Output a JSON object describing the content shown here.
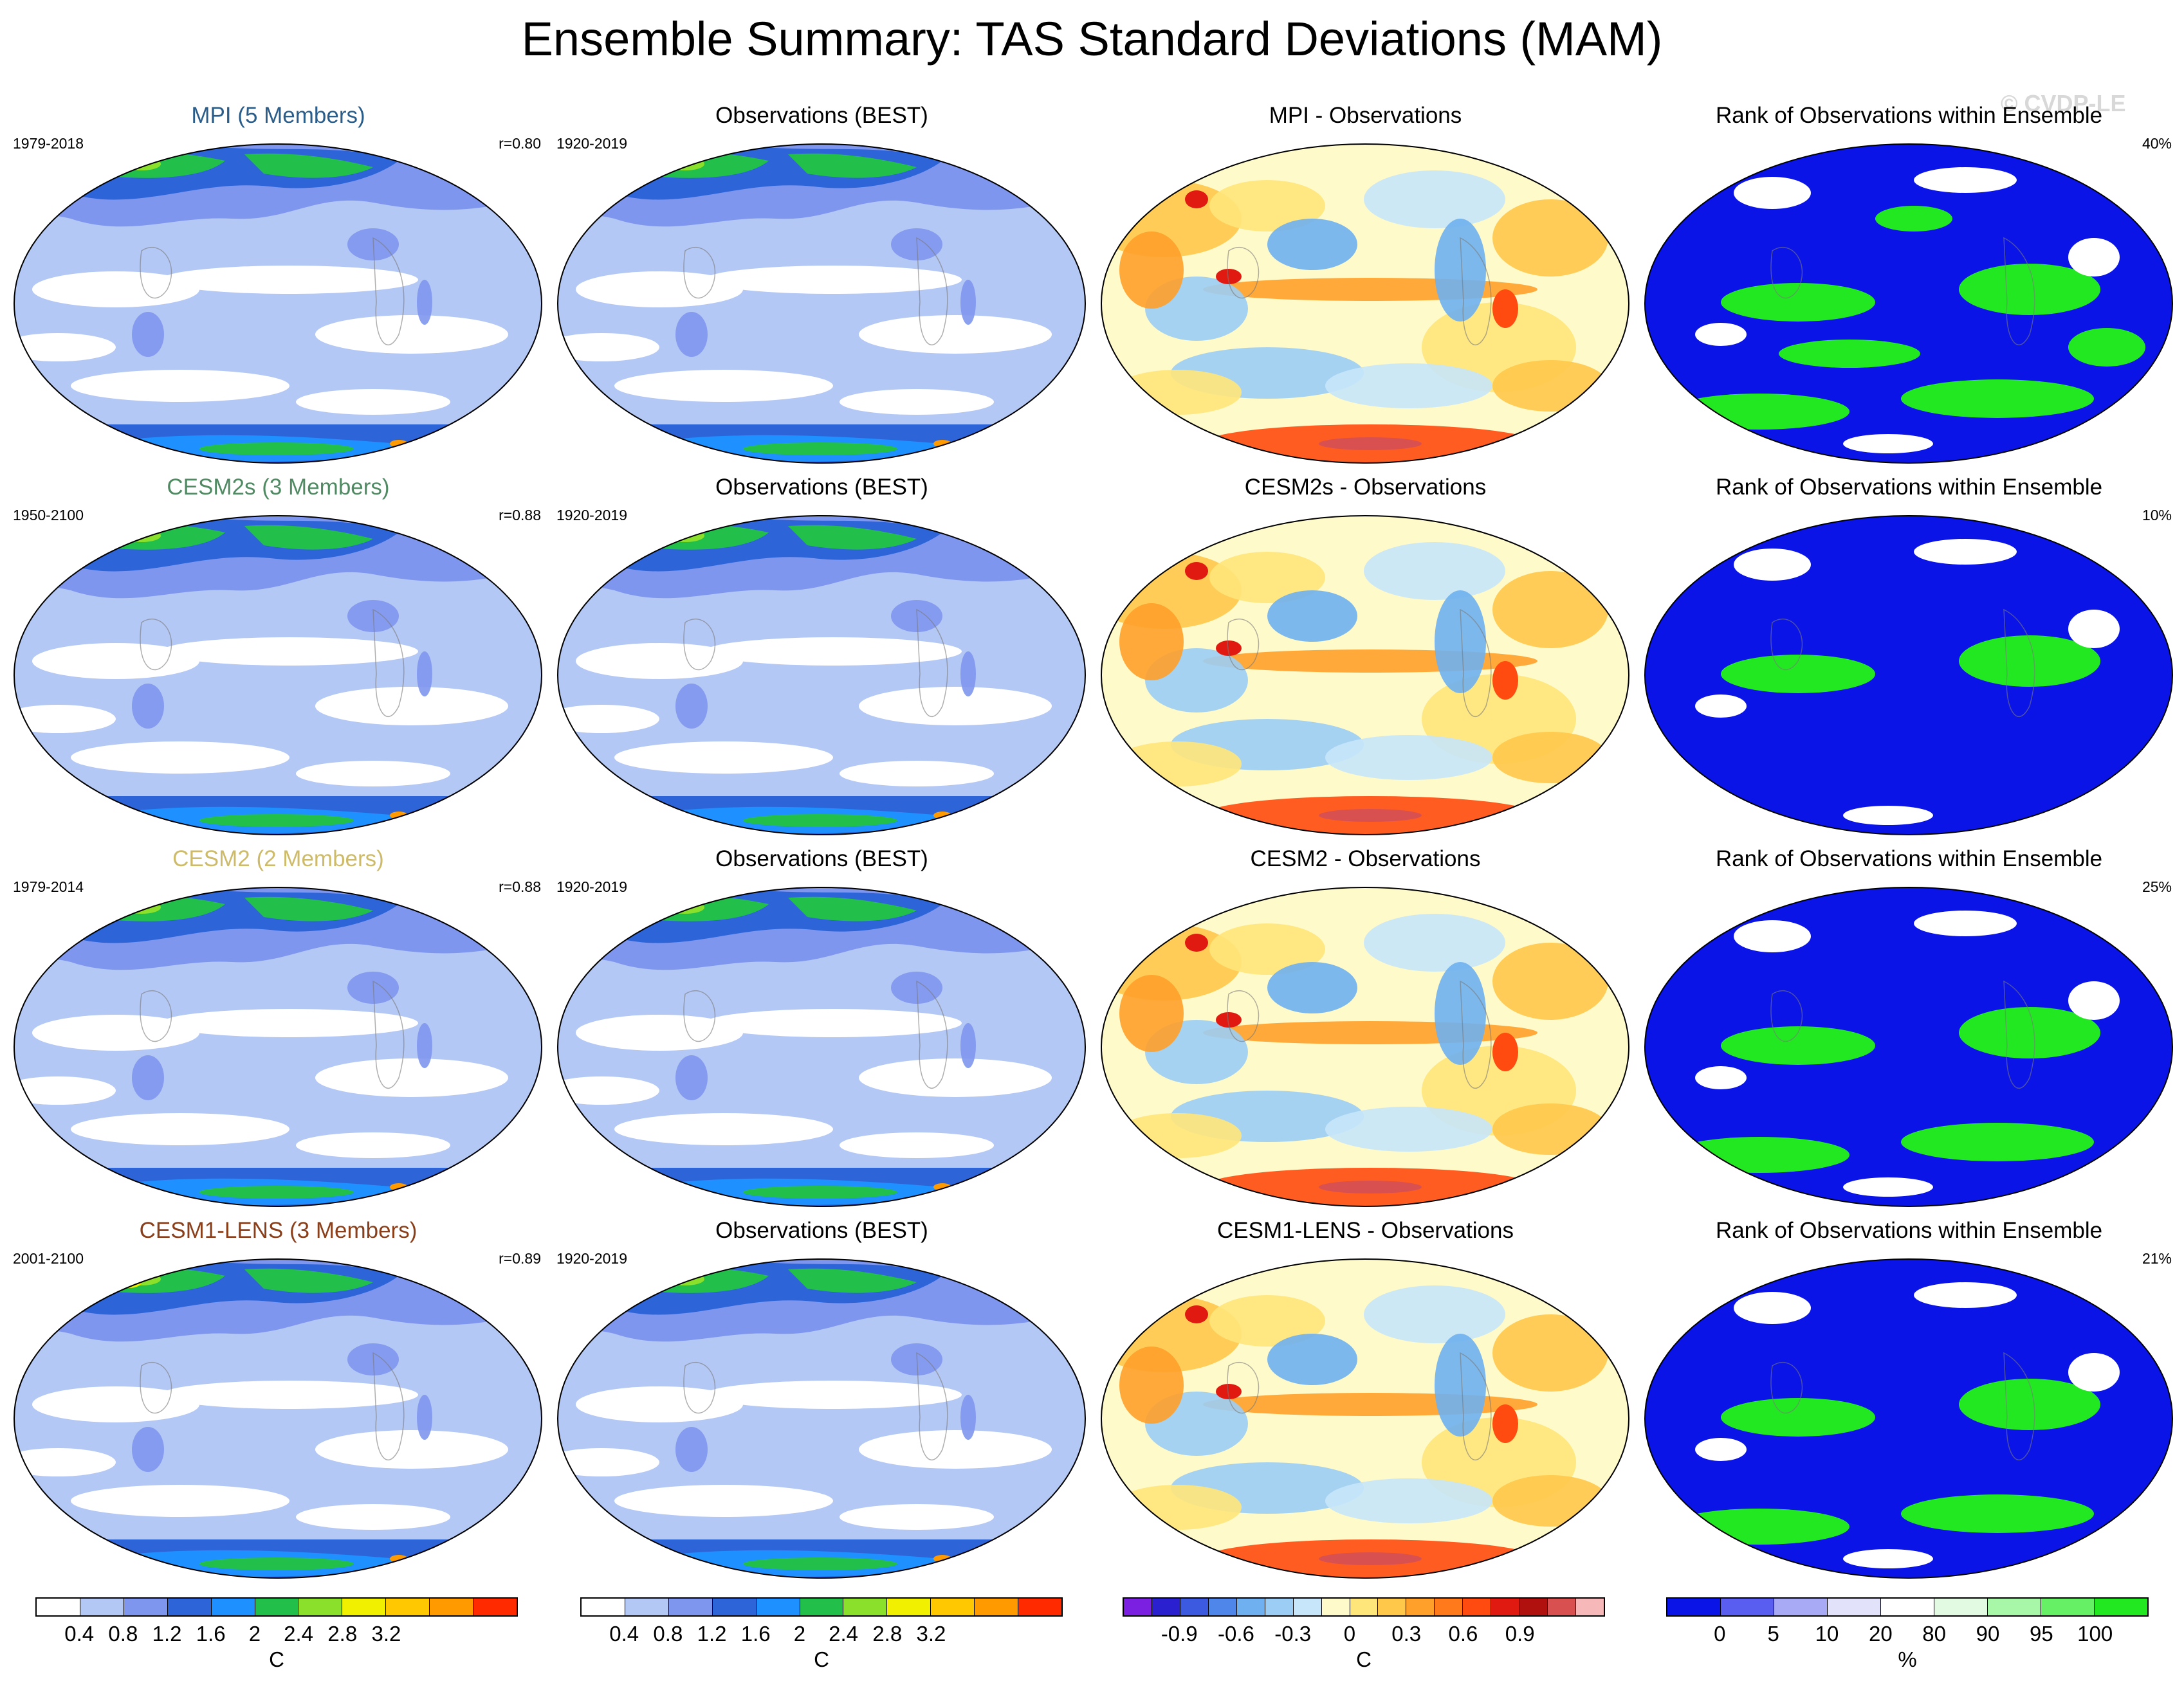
{
  "title": "Ensemble Summary: TAS Standard Deviations (MAM)",
  "copyright": "© CVDP-LE",
  "rows": [
    {
      "model": {
        "title": "MPI (5 Members)",
        "title_color": "#2a5d8a",
        "years": "1979-2018",
        "corr": "r=0.80"
      },
      "obs": {
        "title": "Observations (BEST)",
        "years": "1920-2019"
      },
      "diff": {
        "title": "MPI - Observations"
      },
      "rank": {
        "title": "Rank of Observations within Ensemble",
        "pct": "40%",
        "green_fraction": 0.4
      }
    },
    {
      "model": {
        "title": "CESM2s (3 Members)",
        "title_color": "#4f8a62",
        "years": "1950-2100",
        "corr": "r=0.88"
      },
      "obs": {
        "title": "Observations (BEST)",
        "years": "1920-2019"
      },
      "diff": {
        "title": "CESM2s - Observations"
      },
      "rank": {
        "title": "Rank of Observations within Ensemble",
        "pct": "10%",
        "green_fraction": 0.1
      }
    },
    {
      "model": {
        "title": "CESM2 (2 Members)",
        "title_color": "#cdbb6a",
        "years": "1979-2014",
        "corr": "r=0.88"
      },
      "obs": {
        "title": "Observations (BEST)",
        "years": "1920-2019"
      },
      "diff": {
        "title": "CESM2 - Observations"
      },
      "rank": {
        "title": "Rank of Observations within Ensemble",
        "pct": "25%",
        "green_fraction": 0.25
      }
    },
    {
      "model": {
        "title": "CESM1-LENS (3 Members)",
        "title_color": "#8a3f1a",
        "years": "2001-2100",
        "corr": "r=0.89"
      },
      "obs": {
        "title": "Observations (BEST)",
        "years": "1920-2019"
      },
      "diff": {
        "title": "CESM1-LENS - Observations"
      },
      "rank": {
        "title": "Rank of Observations within Ensemble",
        "pct": "21%",
        "green_fraction": 0.21
      }
    }
  ],
  "colorbars": {
    "sd": {
      "colors": [
        "#ffffff",
        "#b4c8f5",
        "#7f96ee",
        "#2d64d8",
        "#1e90ff",
        "#22c04a",
        "#8ae02a",
        "#f0f000",
        "#ffc800",
        "#ff9a00",
        "#ff2a00"
      ],
      "ticks": [
        "0.4",
        "0.8",
        "1.2",
        "1.6",
        "2",
        "2.4",
        "2.8",
        "3.2"
      ],
      "unit": "C"
    },
    "diff": {
      "colors": [
        "#7b1fe0",
        "#2a20d0",
        "#3b5ae0",
        "#4f86ea",
        "#6fb0f0",
        "#9ccdf5",
        "#c8e6fa",
        "#fffaca",
        "#ffe67a",
        "#ffc84a",
        "#ffa02a",
        "#ff7a1a",
        "#ff4a10",
        "#e01a10",
        "#b0100e",
        "#d85050",
        "#f6b8b8"
      ],
      "ticks": [
        "-0.9",
        "-0.6",
        "-0.3",
        "0",
        "0.3",
        "0.6",
        "0.9"
      ],
      "unit": "C"
    },
    "rank": {
      "colors": [
        "#0a14e6",
        "#5a5ef0",
        "#a8aaf6",
        "#e2e2fa",
        "#ffffff",
        "#e2fae2",
        "#a8f6a8",
        "#66f066",
        "#22e822"
      ],
      "ticks": [
        "0",
        "5",
        "10",
        "20",
        "80",
        "90",
        "95",
        "100"
      ],
      "unit": "%"
    }
  }
}
